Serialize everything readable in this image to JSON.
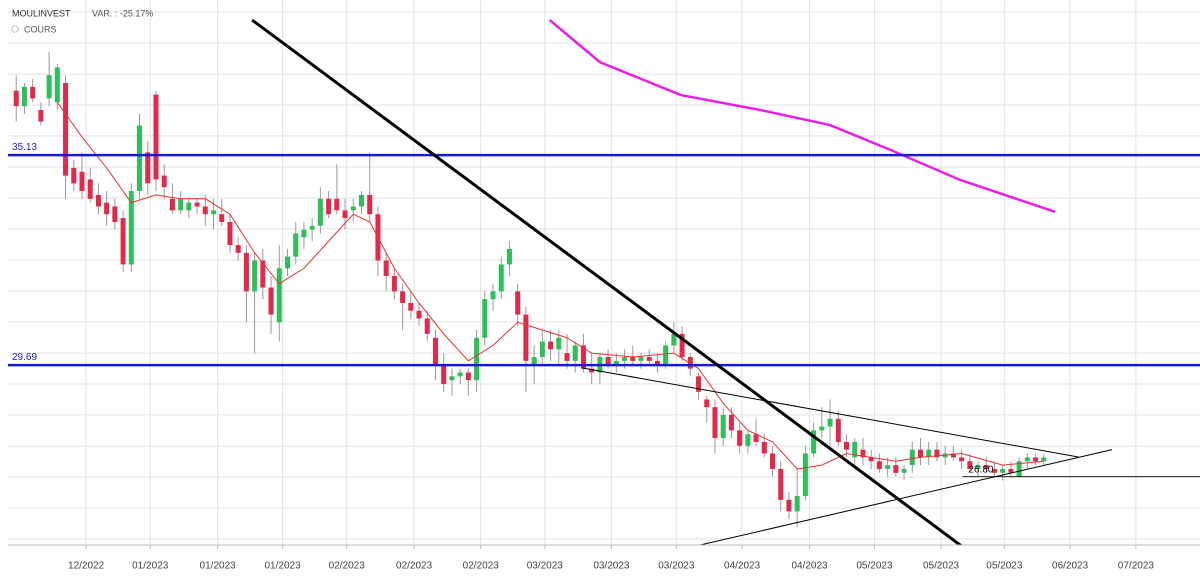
{
  "header": {
    "symbol": "MOULINVEST",
    "variation": "VAR. : -25.17%",
    "series_label": "COURS"
  },
  "chart_data": {
    "type": "candlestick",
    "xlim": [
      -1,
      144
    ],
    "ylim": [
      25.03,
      39.15
    ],
    "grid": true,
    "xticks": [
      {
        "value": 8.5,
        "label": "12/2022"
      },
      {
        "value": 16.3,
        "label": "01/2023"
      },
      {
        "value": 24.5,
        "label": "01/2023"
      },
      {
        "value": 32.4,
        "label": "01/2023"
      },
      {
        "value": 40.2,
        "label": "02/2023"
      },
      {
        "value": 48.4,
        "label": "02/2023"
      },
      {
        "value": 56.5,
        "label": "02/2023"
      },
      {
        "value": 64.3,
        "label": "03/2023"
      },
      {
        "value": 72.4,
        "label": "03/2023"
      },
      {
        "value": 80.3,
        "label": "03/2023"
      },
      {
        "value": 88.3,
        "label": "04/2023"
      },
      {
        "value": 96.5,
        "label": "04/2023"
      },
      {
        "value": 104.4,
        "label": "05/2023"
      },
      {
        "value": 112.5,
        "label": "05/2023"
      },
      {
        "value": 120.2,
        "label": "05/2023"
      },
      {
        "value": 128.2,
        "label": "06/2023"
      },
      {
        "value": 136.2,
        "label": "07/2023"
      }
    ],
    "ygrid": [
      38.84,
      38.04,
      37.23,
      36.43,
      35.63,
      34.82,
      34.02,
      33.22,
      32.41,
      31.61,
      30.81,
      30.0,
      29.2,
      28.4,
      27.59,
      26.79,
      25.99,
      25.19
    ],
    "up_color": "#2fbf5a",
    "down_color": "#e2284b",
    "open": [
      36.8,
      36.4,
      36.9,
      36.3,
      36.6,
      36.5,
      37.0,
      34.8,
      34.7,
      34.5,
      34.1,
      33.9,
      33.8,
      33.5,
      32.3,
      34.2,
      35.2,
      36.7,
      34.6,
      34.0,
      33.7,
      33.7,
      33.9,
      33.8,
      33.6,
      33.6,
      33.4,
      32.8,
      32.6,
      31.6,
      32.4,
      31.7,
      30.8,
      32.2,
      32.5,
      33.0,
      33.2,
      33.3,
      34.0,
      34.0,
      33.7,
      33.7,
      33.8,
      34.1,
      33.6,
      32.4,
      32.0,
      31.6,
      31.3,
      31.1,
      30.9,
      30.4,
      29.7,
      29.3,
      29.4,
      29.5,
      29.3,
      30.4,
      31.4,
      31.6,
      32.3,
      31.6,
      31.0,
      29.7,
      29.9,
      30.3,
      30.1,
      30.0,
      29.8,
      30.2,
      29.6,
      29.5,
      29.9,
      29.7,
      29.8,
      29.9,
      29.8,
      29.9,
      29.8,
      29.7,
      30.2,
      30.5,
      29.9,
      29.4,
      28.8,
      28.6,
      27.8,
      28.4,
      28.0,
      27.6,
      27.9,
      27.7,
      27.4,
      27.0,
      26.2,
      25.9,
      26.3,
      27.4,
      28.0,
      28.1,
      28.3,
      27.7,
      27.3,
      27.5,
      27.3,
      27.2,
      27.0,
      27.1,
      26.9,
      27.1,
      27.5,
      27.3,
      27.5,
      27.3,
      27.4,
      27.3,
      27.2,
      27.0,
      27.1,
      27.0,
      26.9,
      27.0,
      26.8,
      27.2,
      27.3,
      27.2
    ],
    "high": [
      37.2,
      37.0,
      37.1,
      36.5,
      37.8,
      37.5,
      37.2,
      35.0,
      35.2,
      34.8,
      34.4,
      34.2,
      34.0,
      33.7,
      34.4,
      36.2,
      35.5,
      36.8,
      34.9,
      34.4,
      34.2,
      34.0,
      34.0,
      34.1,
      34.0,
      34.0,
      33.6,
      33.0,
      32.8,
      32.6,
      32.7,
      32.0,
      32.8,
      32.7,
      33.4,
      33.4,
      33.5,
      34.3,
      34.2,
      34.9,
      34.0,
      34.0,
      34.2,
      35.2,
      33.8,
      32.6,
      32.2,
      31.8,
      31.6,
      31.3,
      31.1,
      30.6,
      30.0,
      29.6,
      29.6,
      29.6,
      30.6,
      31.6,
      31.8,
      32.5,
      32.9,
      31.8,
      31.2,
      30.2,
      30.6,
      30.6,
      30.6,
      30.5,
      30.3,
      30.5,
      30.0,
      30.0,
      30.1,
      30.0,
      30.1,
      30.2,
      30.0,
      30.1,
      30.0,
      30.3,
      30.8,
      30.7,
      30.0,
      29.5,
      28.9,
      28.8,
      28.6,
      28.6,
      28.2,
      28.0,
      28.3,
      27.9,
      27.6,
      27.2,
      26.4,
      27.0,
      27.6,
      28.2,
      28.6,
      28.8,
      28.5,
      27.9,
      27.8,
      27.8,
      27.5,
      27.4,
      27.3,
      27.3,
      27.1,
      27.7,
      27.8,
      27.7,
      27.7,
      27.6,
      27.6,
      27.5,
      27.4,
      27.2,
      27.3,
      27.2,
      27.1,
      27.2,
      27.3,
      27.4,
      27.4,
      27.4
    ],
    "low": [
      36.0,
      36.2,
      36.5,
      35.9,
      36.4,
      36.3,
      34.0,
      34.2,
      34.0,
      33.9,
      33.6,
      33.3,
      33.2,
      32.1,
      32.1,
      34.0,
      34.1,
      34.2,
      34.0,
      33.6,
      33.6,
      33.5,
      33.6,
      33.3,
      33.2,
      33.3,
      32.6,
      32.4,
      30.8,
      30.0,
      31.4,
      30.5,
      30.3,
      32.0,
      32.3,
      32.7,
      32.9,
      33.1,
      33.5,
      33.6,
      33.2,
      33.4,
      33.6,
      33.4,
      32.0,
      31.6,
      31.4,
      30.6,
      30.9,
      30.7,
      30.3,
      29.3,
      29.0,
      28.9,
      29.2,
      28.9,
      29.0,
      30.2,
      31.1,
      31.4,
      32.0,
      30.7,
      29.0,
      29.2,
      29.7,
      29.8,
      29.7,
      29.6,
      29.5,
      29.5,
      29.2,
      29.2,
      29.6,
      29.5,
      29.6,
      29.7,
      29.6,
      29.7,
      29.5,
      29.6,
      30.0,
      29.8,
      29.4,
      28.8,
      28.2,
      27.4,
      27.6,
      27.8,
      27.4,
      27.4,
      27.6,
      27.3,
      26.8,
      25.9,
      25.7,
      25.5,
      26.2,
      27.3,
      27.8,
      27.6,
      27.6,
      27.3,
      27.1,
      27.1,
      27.0,
      26.9,
      26.8,
      26.8,
      26.7,
      26.9,
      27.1,
      27.1,
      27.2,
      27.1,
      27.2,
      27.0,
      26.9,
      26.8,
      26.9,
      26.8,
      26.7,
      26.8,
      26.8,
      27.0,
      27.1,
      27.1
    ],
    "close": [
      36.4,
      36.9,
      36.6,
      36.0,
      37.2,
      37.4,
      34.6,
      34.4,
      34.2,
      34.0,
      33.8,
      33.6,
      33.4,
      32.3,
      34.2,
      35.9,
      34.4,
      34.5,
      34.3,
      33.7,
      34.0,
      33.9,
      33.8,
      33.6,
      33.7,
      33.4,
      32.8,
      32.6,
      31.6,
      32.4,
      31.7,
      31.0,
      32.2,
      32.5,
      33.1,
      33.2,
      33.3,
      34.0,
      33.6,
      33.7,
      33.5,
      33.8,
      34.1,
      33.6,
      32.4,
      32.0,
      31.6,
      31.3,
      31.1,
      30.9,
      30.5,
      29.7,
      29.2,
      29.4,
      29.5,
      29.3,
      30.4,
      31.4,
      31.6,
      32.3,
      32.7,
      31.0,
      29.8,
      29.9,
      30.3,
      30.1,
      30.4,
      29.8,
      30.2,
      29.6,
      29.5,
      29.9,
      29.7,
      29.8,
      29.9,
      29.8,
      29.9,
      29.8,
      29.7,
      30.2,
      30.5,
      29.9,
      29.6,
      29.0,
      28.6,
      27.8,
      28.4,
      28.0,
      27.6,
      27.9,
      27.7,
      27.4,
      27.0,
      26.2,
      25.9,
      26.3,
      27.4,
      28.0,
      28.1,
      28.3,
      27.7,
      27.5,
      27.7,
      27.3,
      27.2,
      27.0,
      27.1,
      26.9,
      27.0,
      27.5,
      27.3,
      27.5,
      27.3,
      27.4,
      27.3,
      27.2,
      27.0,
      27.1,
      27.0,
      26.9,
      27.0,
      26.9,
      27.2,
      27.3,
      27.2,
      27.3
    ],
    "moving_average": {
      "color": "#e8332f",
      "x": [
        5,
        8,
        11,
        14,
        17,
        20,
        23,
        26,
        29,
        32,
        35,
        38,
        41,
        43,
        46,
        49,
        52,
        55,
        58,
        61,
        64,
        67,
        70,
        75,
        80,
        83,
        86,
        89,
        92,
        95,
        98,
        101,
        104,
        107,
        110,
        115,
        120,
        125
      ],
      "values": [
        36.5,
        35.6,
        34.8,
        33.9,
        34.1,
        34.0,
        34.0,
        33.6,
        32.6,
        31.8,
        32.2,
        32.9,
        33.6,
        33.4,
        32.2,
        31.3,
        30.5,
        29.8,
        30.2,
        30.8,
        30.6,
        30.4,
        30.0,
        29.9,
        30.0,
        29.6,
        28.7,
        28.0,
        27.7,
        27.0,
        27.1,
        27.4,
        27.3,
        27.2,
        27.3,
        27.4,
        27.1,
        27.2
      ]
    },
    "long_average": {
      "color": "#e81ee8",
      "x": [
        64.9,
        71.0,
        80.8,
        90.5,
        99.0,
        106.3,
        114.8,
        126.4
      ],
      "values": [
        38.63,
        37.54,
        36.69,
        36.3,
        35.91,
        35.27,
        34.49,
        33.66
      ]
    },
    "levels": [
      {
        "value": 35.13,
        "color": "#1a1ad6"
      },
      {
        "value": 29.69,
        "color": "#1a1ad6"
      }
    ],
    "support": {
      "value": 26.8,
      "label": "26.80",
      "x": [
        115.1,
        144
      ]
    },
    "trendlines": [
      {
        "style": "thick",
        "x": [
          28.7,
          116.6
        ],
        "values": [
          38.63,
          24.75
        ]
      },
      {
        "style": "thin",
        "x": [
          68.8,
          129.2
        ],
        "values": [
          29.62,
          27.31
        ]
      },
      {
        "style": "thin",
        "x": [
          83.2,
          133.3
        ],
        "values": [
          25.03,
          27.5
        ]
      }
    ]
  }
}
